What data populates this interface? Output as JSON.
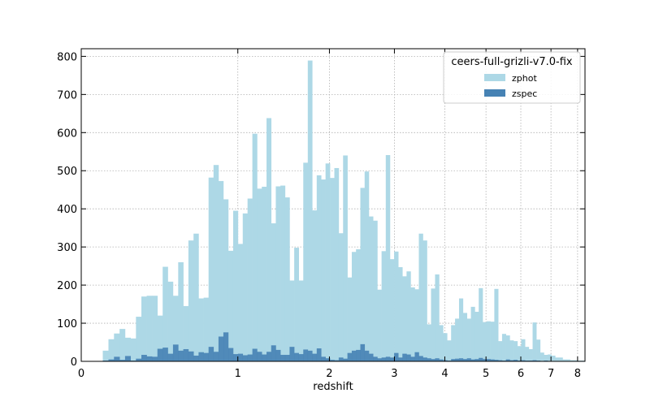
{
  "chart_data": {
    "type": "bar",
    "subtype": "histogram",
    "xlabel": "redshift",
    "ylabel": "",
    "xscale": "log(1+z)",
    "xlim": [
      0,
      8.3
    ],
    "ylim": [
      0,
      820
    ],
    "x_ticks": [
      0,
      1,
      2,
      3,
      4,
      5,
      6,
      7,
      8
    ],
    "y_ticks": [
      0,
      100,
      200,
      300,
      400,
      500,
      600,
      700,
      800
    ],
    "grid": true,
    "legend": {
      "title": "ceers-full-grizli-v7.0-fix",
      "placement": "top-right"
    },
    "series": [
      {
        "name": "zphot",
        "color": "#add8e6",
        "bins": [
          [
            0.1,
            0.128,
            28
          ],
          [
            0.128,
            0.156,
            58
          ],
          [
            0.156,
            0.185,
            73
          ],
          [
            0.185,
            0.214,
            85
          ],
          [
            0.214,
            0.244,
            62
          ],
          [
            0.244,
            0.274,
            60
          ],
          [
            0.274,
            0.305,
            117
          ],
          [
            0.305,
            0.336,
            170
          ],
          [
            0.336,
            0.368,
            172
          ],
          [
            0.368,
            0.401,
            172
          ],
          [
            0.401,
            0.434,
            120
          ],
          [
            0.434,
            0.467,
            248
          ],
          [
            0.467,
            0.501,
            209
          ],
          [
            0.501,
            0.536,
            172
          ],
          [
            0.536,
            0.571,
            260
          ],
          [
            0.571,
            0.607,
            145
          ],
          [
            0.607,
            0.644,
            317
          ],
          [
            0.644,
            0.681,
            335
          ],
          [
            0.681,
            0.719,
            165
          ],
          [
            0.719,
            0.757,
            167
          ],
          [
            0.757,
            0.796,
            482
          ],
          [
            0.796,
            0.836,
            515
          ],
          [
            0.836,
            0.876,
            473
          ],
          [
            0.876,
            0.917,
            425
          ],
          [
            0.917,
            0.959,
            290
          ],
          [
            0.959,
            1.001,
            395
          ],
          [
            1.001,
            1.044,
            308
          ],
          [
            1.044,
            1.088,
            388
          ],
          [
            1.088,
            1.133,
            427
          ],
          [
            1.133,
            1.178,
            597
          ],
          [
            1.178,
            1.224,
            453
          ],
          [
            1.224,
            1.271,
            458
          ],
          [
            1.271,
            1.318,
            638
          ],
          [
            1.318,
            1.366,
            362
          ],
          [
            1.366,
            1.415,
            459
          ],
          [
            1.415,
            1.465,
            461
          ],
          [
            1.465,
            1.515,
            430
          ],
          [
            1.515,
            1.567,
            212
          ],
          [
            1.567,
            1.619,
            298
          ],
          [
            1.619,
            1.672,
            212
          ],
          [
            1.672,
            1.726,
            521
          ],
          [
            1.726,
            1.78,
            789
          ],
          [
            1.78,
            1.836,
            396
          ],
          [
            1.836,
            1.892,
            488
          ],
          [
            1.892,
            1.949,
            477
          ],
          [
            1.949,
            2.007,
            519
          ],
          [
            2.007,
            2.066,
            481
          ],
          [
            2.066,
            2.126,
            507
          ],
          [
            2.126,
            2.187,
            336
          ],
          [
            2.187,
            2.249,
            540
          ],
          [
            2.249,
            2.312,
            220
          ],
          [
            2.312,
            2.375,
            287
          ],
          [
            2.375,
            2.44,
            294
          ],
          [
            2.44,
            2.506,
            455
          ],
          [
            2.506,
            2.572,
            498
          ],
          [
            2.572,
            2.64,
            380
          ],
          [
            2.64,
            2.709,
            369
          ],
          [
            2.709,
            2.779,
            188
          ],
          [
            2.779,
            2.85,
            289
          ],
          [
            2.85,
            2.922,
            541
          ],
          [
            2.922,
            2.995,
            268
          ],
          [
            2.995,
            3.069,
            288
          ],
          [
            3.069,
            3.144,
            247
          ],
          [
            3.144,
            3.221,
            223
          ],
          [
            3.221,
            3.298,
            236
          ],
          [
            3.298,
            3.377,
            194
          ],
          [
            3.377,
            3.457,
            189
          ],
          [
            3.457,
            3.538,
            335
          ],
          [
            3.538,
            3.62,
            317
          ],
          [
            3.62,
            3.704,
            97
          ],
          [
            3.704,
            3.789,
            191
          ],
          [
            3.789,
            3.875,
            228
          ],
          [
            3.875,
            3.962,
            95
          ],
          [
            3.962,
            4.051,
            74
          ],
          [
            4.051,
            4.141,
            55
          ],
          [
            4.141,
            4.232,
            95
          ],
          [
            4.232,
            4.325,
            112
          ],
          [
            4.325,
            4.419,
            165
          ],
          [
            4.419,
            4.515,
            127
          ],
          [
            4.515,
            4.612,
            112
          ],
          [
            4.612,
            4.71,
            143
          ],
          [
            4.71,
            4.81,
            130
          ],
          [
            4.81,
            4.912,
            192
          ],
          [
            4.912,
            5.015,
            103
          ],
          [
            5.015,
            5.119,
            105
          ],
          [
            5.119,
            5.225,
            104
          ],
          [
            5.225,
            5.333,
            190
          ],
          [
            5.333,
            5.442,
            53
          ],
          [
            5.442,
            5.553,
            72
          ],
          [
            5.553,
            5.665,
            68
          ],
          [
            5.665,
            5.779,
            55
          ],
          [
            5.779,
            5.895,
            53
          ],
          [
            5.895,
            6.012,
            40
          ],
          [
            6.012,
            6.131,
            58
          ],
          [
            6.131,
            6.252,
            38
          ],
          [
            6.252,
            6.375,
            32
          ],
          [
            6.375,
            6.499,
            102
          ],
          [
            6.499,
            6.626,
            57
          ],
          [
            6.626,
            6.754,
            23
          ],
          [
            6.754,
            6.884,
            17
          ],
          [
            6.884,
            7.016,
            18
          ],
          [
            7.016,
            7.149,
            15
          ],
          [
            7.149,
            7.285,
            10
          ],
          [
            7.285,
            7.423,
            10
          ],
          [
            7.423,
            7.562,
            5
          ],
          [
            7.562,
            7.704,
            5
          ],
          [
            7.704,
            7.848,
            3
          ],
          [
            7.848,
            7.993,
            3
          ],
          [
            7.993,
            8.141,
            2
          ],
          [
            8.141,
            8.291,
            2
          ]
        ]
      },
      {
        "name": "zspec",
        "color": "#4682b4",
        "bins": [
          [
            0.1,
            0.128,
            2
          ],
          [
            0.128,
            0.156,
            5
          ],
          [
            0.156,
            0.185,
            12
          ],
          [
            0.185,
            0.214,
            4
          ],
          [
            0.214,
            0.244,
            14
          ],
          [
            0.244,
            0.274,
            2
          ],
          [
            0.274,
            0.305,
            7
          ],
          [
            0.305,
            0.336,
            17
          ],
          [
            0.336,
            0.368,
            13
          ],
          [
            0.368,
            0.401,
            12
          ],
          [
            0.401,
            0.434,
            33
          ],
          [
            0.434,
            0.467,
            36
          ],
          [
            0.467,
            0.501,
            20
          ],
          [
            0.501,
            0.536,
            44
          ],
          [
            0.536,
            0.571,
            28
          ],
          [
            0.571,
            0.607,
            32
          ],
          [
            0.607,
            0.644,
            26
          ],
          [
            0.644,
            0.681,
            15
          ],
          [
            0.681,
            0.719,
            24
          ],
          [
            0.719,
            0.757,
            22
          ],
          [
            0.757,
            0.796,
            38
          ],
          [
            0.796,
            0.836,
            25
          ],
          [
            0.836,
            0.876,
            65
          ],
          [
            0.876,
            0.917,
            76
          ],
          [
            0.917,
            0.959,
            35
          ],
          [
            0.959,
            1.001,
            19
          ],
          [
            1.001,
            1.044,
            20
          ],
          [
            1.044,
            1.088,
            16
          ],
          [
            1.088,
            1.133,
            18
          ],
          [
            1.133,
            1.178,
            33
          ],
          [
            1.178,
            1.224,
            25
          ],
          [
            1.224,
            1.271,
            18
          ],
          [
            1.271,
            1.318,
            25
          ],
          [
            1.318,
            1.366,
            42
          ],
          [
            1.366,
            1.415,
            30
          ],
          [
            1.415,
            1.465,
            17
          ],
          [
            1.465,
            1.515,
            17
          ],
          [
            1.515,
            1.567,
            38
          ],
          [
            1.567,
            1.619,
            22
          ],
          [
            1.619,
            1.672,
            19
          ],
          [
            1.672,
            1.726,
            31
          ],
          [
            1.726,
            1.78,
            28
          ],
          [
            1.78,
            1.836,
            20
          ],
          [
            1.836,
            1.892,
            34
          ],
          [
            1.892,
            1.949,
            12
          ],
          [
            1.949,
            2.007,
            8
          ],
          [
            2.007,
            2.066,
            4
          ],
          [
            2.066,
            2.126,
            3
          ],
          [
            2.126,
            2.187,
            10
          ],
          [
            2.187,
            2.249,
            7
          ],
          [
            2.249,
            2.312,
            22
          ],
          [
            2.312,
            2.375,
            28
          ],
          [
            2.375,
            2.44,
            30
          ],
          [
            2.44,
            2.506,
            45
          ],
          [
            2.506,
            2.572,
            28
          ],
          [
            2.572,
            2.64,
            20
          ],
          [
            2.64,
            2.709,
            12
          ],
          [
            2.709,
            2.779,
            8
          ],
          [
            2.779,
            2.85,
            10
          ],
          [
            2.85,
            2.922,
            12
          ],
          [
            2.922,
            2.995,
            10
          ],
          [
            2.995,
            3.069,
            22
          ],
          [
            3.069,
            3.144,
            10
          ],
          [
            3.144,
            3.221,
            20
          ],
          [
            3.221,
            3.298,
            18
          ],
          [
            3.298,
            3.377,
            12
          ],
          [
            3.377,
            3.457,
            24
          ],
          [
            3.457,
            3.538,
            14
          ],
          [
            3.538,
            3.62,
            10
          ],
          [
            3.62,
            3.704,
            8
          ],
          [
            3.704,
            3.789,
            6
          ],
          [
            3.789,
            3.875,
            8
          ],
          [
            3.875,
            3.962,
            5
          ],
          [
            3.962,
            4.051,
            3
          ],
          [
            4.051,
            4.141,
            2
          ],
          [
            4.141,
            4.232,
            6
          ],
          [
            4.232,
            4.325,
            7
          ],
          [
            4.325,
            4.419,
            8
          ],
          [
            4.419,
            4.515,
            6
          ],
          [
            4.515,
            4.612,
            8
          ],
          [
            4.612,
            4.71,
            5
          ],
          [
            4.71,
            4.81,
            6
          ],
          [
            4.81,
            4.912,
            9
          ],
          [
            4.912,
            5.015,
            6
          ],
          [
            5.015,
            5.119,
            6
          ],
          [
            5.119,
            5.225,
            5
          ],
          [
            5.225,
            5.333,
            4
          ],
          [
            5.333,
            5.442,
            3
          ],
          [
            5.442,
            5.553,
            2
          ],
          [
            5.553,
            5.665,
            5
          ],
          [
            5.665,
            5.779,
            3
          ],
          [
            5.779,
            5.895,
            4
          ],
          [
            5.895,
            6.012,
            2
          ],
          [
            6.012,
            6.131,
            3
          ],
          [
            6.131,
            6.252,
            2
          ],
          [
            6.252,
            6.375,
            2
          ],
          [
            6.375,
            6.499,
            3
          ],
          [
            6.499,
            6.626,
            2
          ],
          [
            6.626,
            6.754,
            1
          ],
          [
            6.754,
            6.884,
            2
          ],
          [
            6.884,
            7.016,
            1
          ],
          [
            7.016,
            7.149,
            1
          ],
          [
            7.149,
            7.285,
            1
          ],
          [
            7.285,
            7.423,
            0
          ],
          [
            7.423,
            7.562,
            0
          ],
          [
            7.562,
            7.704,
            0
          ],
          [
            7.704,
            7.848,
            0
          ],
          [
            7.848,
            7.993,
            0
          ],
          [
            7.993,
            8.141,
            0
          ],
          [
            8.141,
            8.291,
            0
          ]
        ]
      }
    ]
  }
}
